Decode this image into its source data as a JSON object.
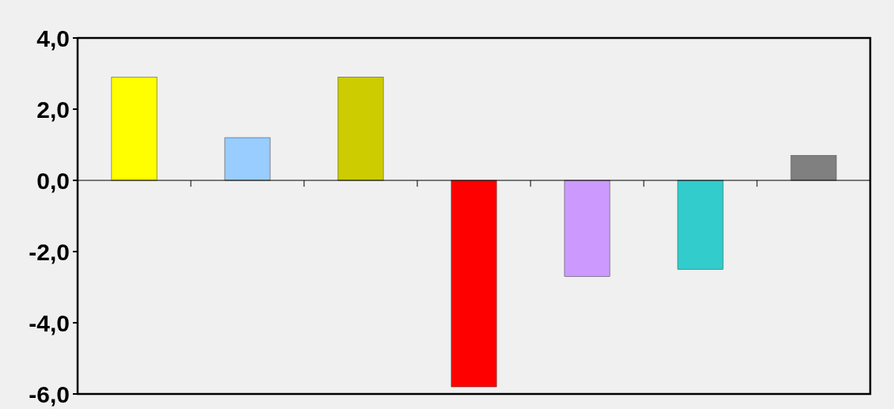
{
  "chart_data": {
    "type": "bar",
    "categories": [
      null,
      null,
      null,
      null,
      null,
      null,
      null
    ],
    "values": [
      2.9,
      1.2,
      2.9,
      -5.8,
      -2.7,
      -2.5,
      0.7
    ],
    "colors": [
      "#ffff00",
      "#99ccff",
      "#cccc00",
      "#ff0000",
      "#cc99ff",
      "#33cccc",
      "#808080"
    ],
    "ylim": [
      -6,
      4
    ],
    "yticks": [
      {
        "value": -6,
        "label": "-6,0"
      },
      {
        "value": -4,
        "label": "-4,0"
      },
      {
        "value": -2,
        "label": "-2,0"
      },
      {
        "value": 0,
        "label": "0,0"
      },
      {
        "value": 2,
        "label": "2,0"
      },
      {
        "value": 4,
        "label": "4,0"
      }
    ]
  }
}
